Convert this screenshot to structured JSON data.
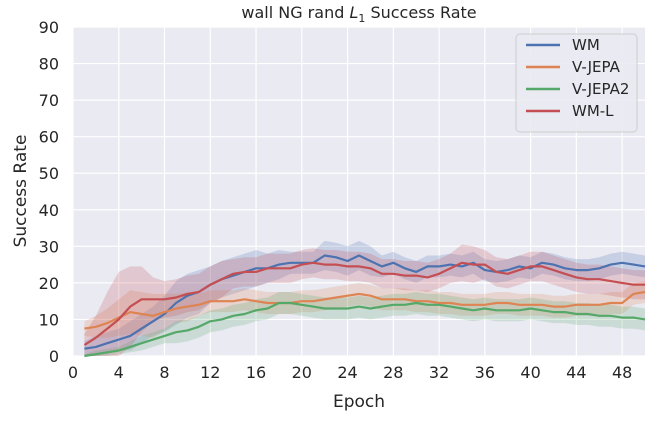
{
  "chart_data": {
    "type": "line",
    "title": "wall NG rand L1 Success Rate",
    "title_parts": {
      "prefix": "wall NG rand ",
      "symbol": "L",
      "subscript": "1",
      "suffix": " Success Rate"
    },
    "xlabel": "Epoch",
    "ylabel": "Success Rate",
    "xlim": [
      0,
      50
    ],
    "ylim": [
      0,
      90
    ],
    "xticks": [
      0,
      4,
      8,
      12,
      16,
      20,
      24,
      28,
      32,
      36,
      40,
      44,
      48
    ],
    "yticks": [
      0,
      10,
      20,
      30,
      40,
      50,
      60,
      70,
      80,
      90
    ],
    "grid": true,
    "legend_position": "top-right",
    "x": [
      1,
      2,
      3,
      4,
      5,
      6,
      7,
      8,
      9,
      10,
      11,
      12,
      13,
      14,
      15,
      16,
      17,
      18,
      19,
      20,
      21,
      22,
      23,
      24,
      25,
      26,
      27,
      28,
      29,
      30,
      31,
      32,
      33,
      34,
      35,
      36,
      37,
      38,
      39,
      40,
      41,
      42,
      43,
      44,
      45,
      46,
      47,
      48,
      49,
      50
    ],
    "series": [
      {
        "name": "WM",
        "color": "#4c72b0",
        "values": [
          2,
          2.5,
          3.5,
          4.5,
          5.5,
          7.5,
          9.5,
          11.5,
          14.5,
          16.5,
          17.5,
          19.5,
          21,
          22,
          23,
          24,
          24,
          25,
          25.5,
          25.5,
          25.5,
          27.5,
          27,
          26,
          27.5,
          26,
          24.5,
          25.5,
          24,
          23,
          24.5,
          24.5,
          25,
          24.5,
          25.5,
          23.5,
          23,
          23.5,
          24.5,
          24,
          25.5,
          25,
          24,
          23.5,
          23.5,
          24,
          25,
          25.5,
          25,
          24.5
        ],
        "band": [
          2,
          3,
          3,
          3,
          4,
          4,
          4,
          5,
          6,
          6,
          6,
          5,
          5,
          5,
          5,
          5,
          4,
          4,
          3,
          3,
          3,
          4,
          4,
          4,
          4,
          4,
          3,
          3,
          3,
          3,
          3,
          3,
          3,
          3,
          3,
          3,
          3,
          3,
          3,
          3,
          3,
          3,
          3,
          3,
          3,
          3,
          3,
          3,
          3,
          3
        ]
      },
      {
        "name": "V-JEPA",
        "color": "#dd8452",
        "values": [
          7.5,
          8,
          9,
          10.5,
          12,
          11.5,
          11,
          12,
          13,
          13.5,
          14,
          15,
          15,
          15,
          15.5,
          15,
          14.5,
          14.5,
          14.5,
          15,
          15,
          15.5,
          16,
          16.5,
          17,
          16.5,
          15.5,
          15.5,
          15.5,
          15,
          15,
          14.5,
          14.5,
          14,
          14,
          14,
          14.5,
          14.5,
          14,
          14,
          14,
          13.5,
          13.5,
          14,
          14,
          14,
          14.5,
          14.5,
          17,
          17.5
        ],
        "band": [
          2,
          3,
          4,
          5,
          6,
          6,
          6,
          5,
          4,
          4,
          3,
          3,
          3,
          3,
          3,
          3,
          3,
          3,
          3,
          3,
          3,
          3,
          3,
          3,
          3,
          3,
          3,
          3,
          3,
          3,
          3,
          3,
          3,
          3,
          3,
          3,
          3,
          3,
          3,
          3,
          3,
          3,
          3,
          3,
          3,
          3,
          3,
          3,
          3,
          3
        ]
      },
      {
        "name": "V-JEPA2",
        "color": "#55a868",
        "values": [
          0,
          0.5,
          1,
          1.5,
          2.5,
          3.5,
          4.5,
          5.5,
          6.5,
          7,
          8,
          9.5,
          10,
          11,
          11.5,
          12.5,
          13,
          14.5,
          14.5,
          14,
          13.5,
          13,
          13,
          13,
          13.5,
          13,
          13.5,
          14,
          14,
          14.5,
          14,
          14,
          13.5,
          13,
          12.5,
          13,
          12.5,
          12.5,
          12.5,
          13,
          12.5,
          12,
          12,
          11.5,
          11.5,
          11,
          11,
          10.5,
          10.5,
          10
        ],
        "band": [
          0.5,
          1,
          1,
          1,
          1.5,
          2,
          2,
          2,
          3,
          3,
          3,
          3,
          3,
          3,
          3,
          3,
          3,
          3,
          3,
          3,
          3,
          3,
          3,
          3,
          3,
          3,
          3,
          3,
          3,
          3,
          3,
          3,
          3,
          3,
          3,
          3,
          3,
          3,
          3,
          3,
          3,
          3,
          3,
          3,
          3,
          3,
          3,
          3,
          3,
          3
        ]
      },
      {
        "name": "WM-L",
        "color": "#c44e52",
        "values": [
          3,
          5,
          7.5,
          10,
          13.5,
          15.5,
          15.5,
          15.5,
          16,
          17,
          17.5,
          19.5,
          21,
          22.5,
          23,
          23,
          24,
          24,
          24,
          25,
          25.5,
          25,
          25,
          24.5,
          24.5,
          24,
          22.5,
          22.5,
          22,
          22,
          21.5,
          22.5,
          24,
          25.5,
          25,
          25,
          23,
          22.5,
          23.5,
          24.5,
          24.5,
          23.5,
          22.5,
          21.5,
          21,
          21,
          20.5,
          20,
          19.5,
          19.5
        ],
        "band": [
          3,
          6,
          10,
          13,
          11,
          9,
          6,
          5,
          5,
          5,
          5,
          5,
          5,
          4,
          4,
          4,
          4,
          4,
          4,
          4,
          4,
          4,
          4,
          4,
          4,
          4,
          4,
          4,
          4,
          4,
          4,
          4,
          4,
          5,
          5,
          4,
          4,
          4,
          4,
          4,
          4,
          4,
          4,
          4,
          4,
          4,
          4,
          4,
          4,
          4
        ]
      }
    ]
  }
}
